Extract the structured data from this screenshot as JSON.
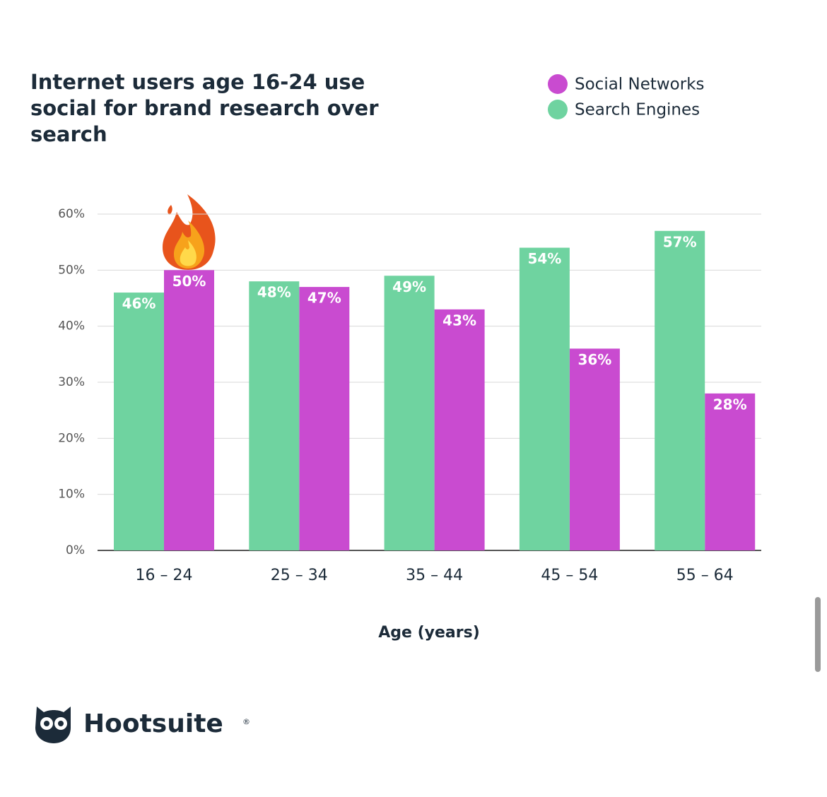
{
  "chart_data": {
    "type": "bar",
    "title": "Internet users age 16-24 use social for brand research over search",
    "x_label": "Age (years)",
    "categories": [
      "16 – 24",
      "25 – 34",
      "35 – 44",
      "45 – 54",
      "55 – 64"
    ],
    "series": [
      {
        "name": "Social Networks",
        "color": "#c94bd0",
        "values": [
          50,
          47,
          43,
          36,
          28
        ],
        "value_labels": [
          "50%",
          "47%",
          "43%",
          "36%",
          "28%"
        ]
      },
      {
        "name": "Search Engines",
        "color": "#6fd3a0",
        "values": [
          46,
          48,
          49,
          54,
          57
        ],
        "value_labels": [
          "46%",
          "48%",
          "49%",
          "54%",
          "57%"
        ]
      }
    ],
    "ylim": [
      0,
      60
    ],
    "yticks": [
      {
        "value": 0,
        "label": "0%"
      },
      {
        "value": 10,
        "label": "10%"
      },
      {
        "value": 20,
        "label": "20%"
      },
      {
        "value": 30,
        "label": "30%"
      },
      {
        "value": 40,
        "label": "40%"
      },
      {
        "value": 50,
        "label": "50%"
      },
      {
        "value": 60,
        "label": "60%"
      }
    ],
    "grid": true,
    "legend": "top-right",
    "brand": "Hootsuite",
    "brand_mark": "®"
  }
}
